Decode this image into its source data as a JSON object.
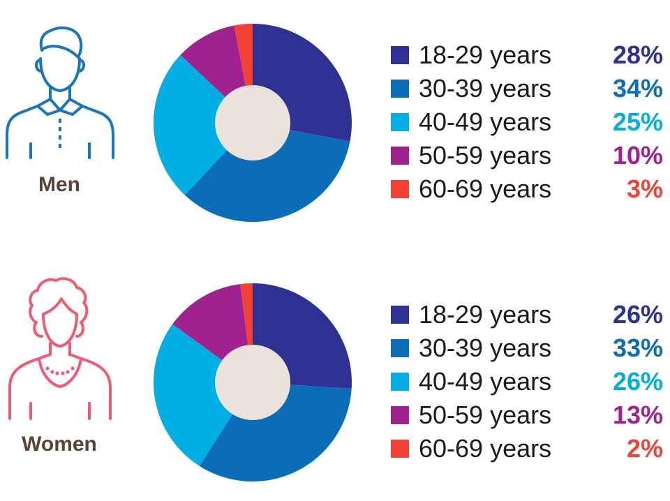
{
  "colors": {
    "age_18_29": "#2e3192",
    "age_30_39": "#0b6cb8",
    "age_40_49": "#00aee3",
    "age_50_59": "#a0228e",
    "age_60_69": "#f24236",
    "center": "#e9e3dc",
    "men_icon": "#1a75bb",
    "women_icon": "#ef5b72",
    "group_label": "#5a4236"
  },
  "icons": {
    "men": "man-outline-icon",
    "women": "woman-outline-icon"
  },
  "chart_data": [
    {
      "type": "pie",
      "group": "Men",
      "categories": [
        "18-29 years",
        "30-39 years",
        "40-49 years",
        "50-59 years",
        "60-69 years"
      ],
      "values": [
        28,
        34,
        25,
        10,
        3
      ],
      "value_labels": [
        "28%",
        "34%",
        "25%",
        "10%",
        "3%"
      ],
      "unit": "%",
      "donut": true,
      "legend": "right"
    },
    {
      "type": "pie",
      "group": "Women",
      "categories": [
        "18-29 years",
        "30-39 years",
        "40-49 years",
        "50-59 years",
        "60-69 years"
      ],
      "values": [
        26,
        33,
        26,
        13,
        2
      ],
      "value_labels": [
        "26%",
        "33%",
        "26%",
        "13%",
        "2%"
      ],
      "unit": "%",
      "donut": true,
      "legend": "right"
    }
  ]
}
